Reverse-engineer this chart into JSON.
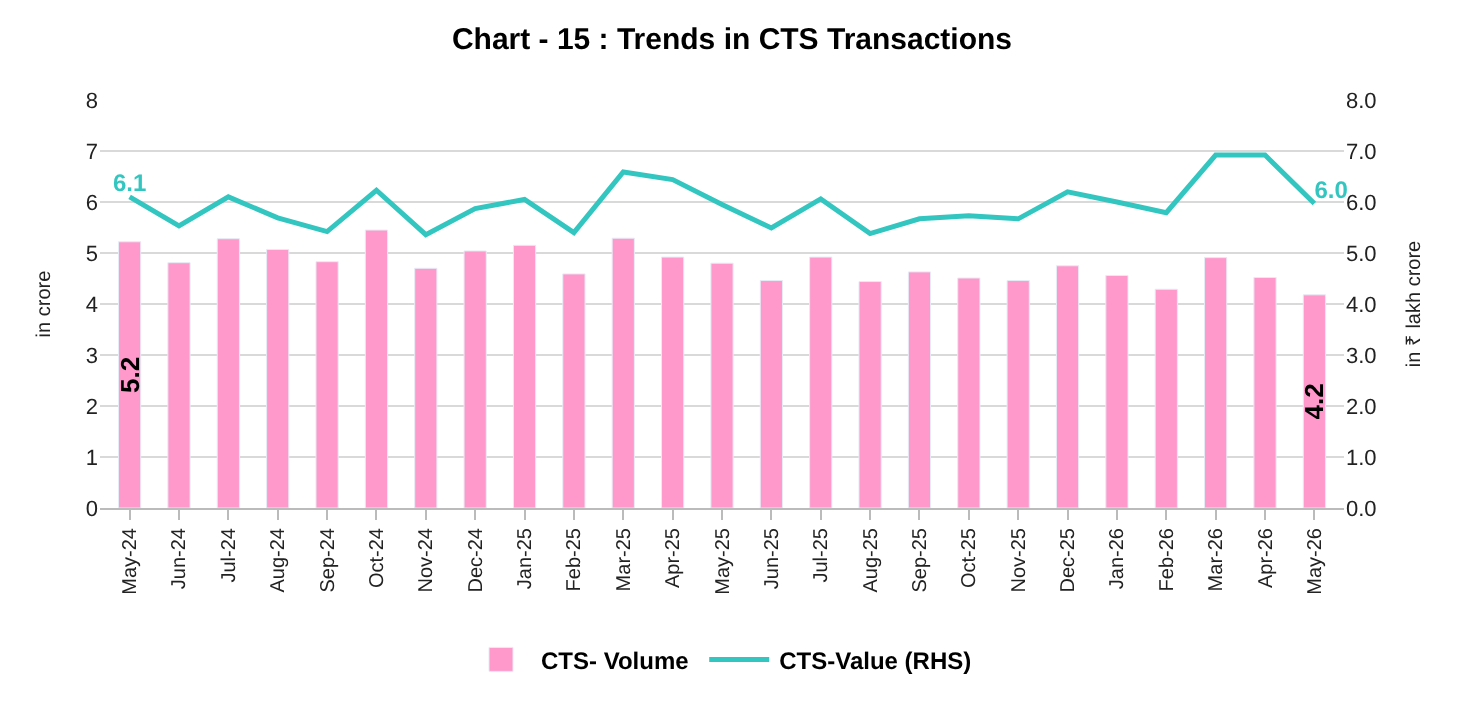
{
  "chart_data": {
    "type": "bar",
    "title": "Chart - 15 : Trends in CTS Transactions",
    "ylabel": "in crore",
    "y2label": "in ₹ lakh crore",
    "categories": [
      "May-24",
      "Jun-24",
      "Jul-24",
      "Aug-24",
      "Sep-24",
      "Oct-24",
      "Nov-24",
      "Dec-24",
      "Jan-25",
      "Feb-25",
      "Mar-25",
      "Apr-25",
      "May-25",
      "Jun-25",
      "Jul-25",
      "Aug-25",
      "Sep-25",
      "Oct-25",
      "Nov-25",
      "Dec-25",
      "Jan-26",
      "Feb-26",
      "Mar-26",
      "Apr-26",
      "May-26"
    ],
    "series": [
      {
        "name": "CTS- Volume",
        "color": "#ff99cc",
        "values": [
          5.22,
          4.81,
          5.28,
          5.07,
          4.83,
          5.45,
          4.7,
          5.04,
          5.15,
          4.59,
          5.29,
          4.92,
          4.8,
          4.46,
          4.92,
          4.44,
          4.63,
          4.51,
          4.46,
          4.75,
          4.56,
          4.29,
          4.91,
          4.52,
          4.18
        ],
        "value_labels": [
          "5.2",
          null,
          null,
          null,
          null,
          null,
          null,
          null,
          null,
          null,
          null,
          null,
          null,
          null,
          null,
          null,
          null,
          null,
          null,
          null,
          null,
          null,
          null,
          null,
          "4.2"
        ]
      },
      {
        "name": "CTS-Value (RHS)",
        "type": "line",
        "axis": "y2",
        "color": "#33c6c0",
        "values": [
          6.1,
          5.53,
          6.1,
          5.69,
          5.42,
          6.23,
          5.36,
          5.87,
          6.05,
          5.4,
          6.59,
          6.44,
          5.95,
          5.49,
          6.06,
          5.38,
          5.67,
          5.73,
          5.67,
          6.2,
          6.0,
          5.79,
          6.92,
          6.92,
          5.97
        ],
        "value_labels": [
          "6.1",
          null,
          null,
          null,
          null,
          null,
          null,
          null,
          null,
          null,
          null,
          null,
          null,
          null,
          null,
          null,
          null,
          null,
          null,
          null,
          null,
          null,
          null,
          null,
          "6.0"
        ]
      }
    ],
    "ylim": [
      0,
      8
    ],
    "yticks": [
      0,
      1,
      2,
      3,
      4,
      5,
      6,
      7,
      8
    ],
    "y2lim": [
      0,
      8
    ],
    "y2ticks": [
      {
        "value": 0,
        "label": "0.0"
      },
      {
        "value": 1,
        "label": "1.0"
      },
      {
        "value": 2,
        "label": "2.0"
      },
      {
        "value": 3,
        "label": "3.0"
      },
      {
        "value": 4,
        "label": "4.0"
      },
      {
        "value": 5,
        "label": "5.0"
      },
      {
        "value": 6,
        "label": "6.0"
      },
      {
        "value": 7,
        "label": "7.0"
      },
      {
        "value": 8,
        "label": "8.0"
      }
    ],
    "grid": "y",
    "legend": "bottom",
    "marker": "none",
    "line_style": "solid"
  }
}
